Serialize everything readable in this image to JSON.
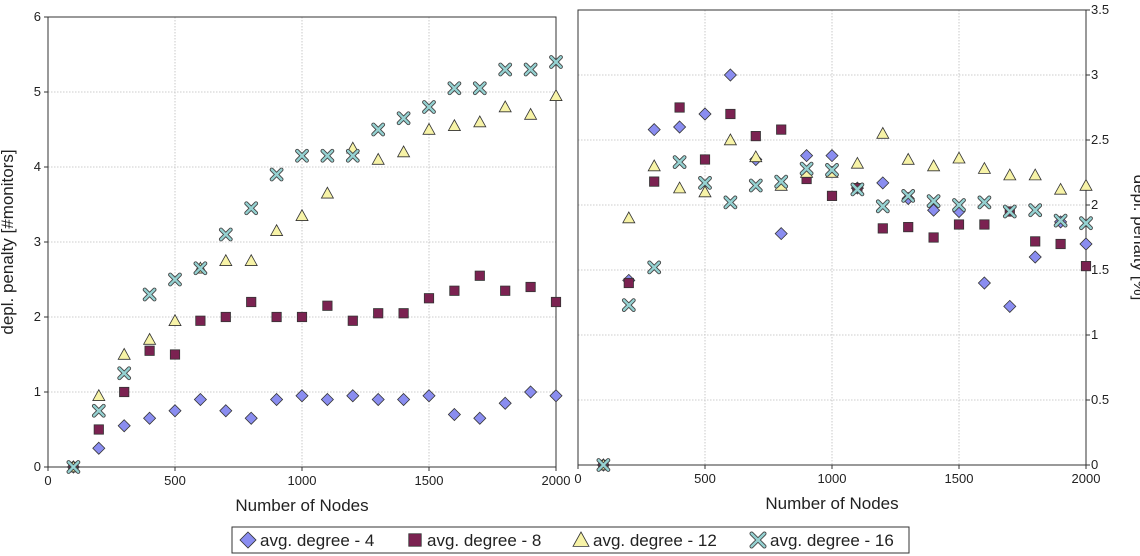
{
  "legend": [
    {
      "label": "avg. degree - 4",
      "marker": "diamond",
      "color": "#8a8df0"
    },
    {
      "label": "avg. degree - 8",
      "marker": "square",
      "color": "#7b2251"
    },
    {
      "label": "avg. degree - 12",
      "marker": "triangle",
      "color": "#f7f3a7"
    },
    {
      "label": "avg. degree - 16",
      "marker": "cross",
      "color": "#95d2d2"
    }
  ],
  "chart_data": [
    {
      "type": "scatter",
      "xlabel": "Number of Nodes",
      "ylabel": "depl. penalty [#monitors]",
      "xlim": [
        0,
        2000
      ],
      "ylim": [
        0,
        6
      ],
      "xticks": [
        "0",
        "500",
        "1000",
        "1500",
        "2000"
      ],
      "yticks": [
        "0",
        "1",
        "2",
        "3",
        "4",
        "5",
        "6"
      ],
      "grid": true,
      "y_axis_side": "left",
      "x": [
        100,
        200,
        300,
        400,
        500,
        600,
        700,
        800,
        900,
        1000,
        1100,
        1200,
        1300,
        1400,
        1500,
        1600,
        1700,
        1800,
        1900,
        2000
      ],
      "series": [
        {
          "name": "avg. degree - 4",
          "values": [
            0,
            0.25,
            0.55,
            0.65,
            0.75,
            0.9,
            0.75,
            0.65,
            0.9,
            0.95,
            0.9,
            0.95,
            0.9,
            0.9,
            0.95,
            0.7,
            0.65,
            0.85,
            1.0,
            0.95
          ]
        },
        {
          "name": "avg. degree - 8",
          "values": [
            0,
            0.5,
            1.0,
            1.55,
            1.5,
            1.95,
            2.0,
            2.2,
            2.0,
            2.0,
            2.15,
            1.95,
            2.05,
            2.05,
            2.25,
            2.35,
            2.55,
            2.35,
            2.4,
            2.2
          ]
        },
        {
          "name": "avg. degree - 12",
          "values": [
            0,
            0.95,
            1.5,
            1.7,
            1.95,
            2.65,
            2.75,
            2.75,
            3.15,
            3.35,
            3.65,
            4.25,
            4.1,
            4.2,
            4.5,
            4.55,
            4.6,
            4.8,
            4.7,
            4.95
          ]
        },
        {
          "name": "avg. degree - 16",
          "values": [
            0,
            0.75,
            1.25,
            2.3,
            2.5,
            2.65,
            3.1,
            3.45,
            3.9,
            4.15,
            4.15,
            4.15,
            4.5,
            4.65,
            4.8,
            5.05,
            5.05,
            5.3,
            5.3,
            5.4
          ]
        }
      ]
    },
    {
      "type": "scatter",
      "xlabel": "Number of Nodes",
      "ylabel": "depl. penalty [%]",
      "xlim": [
        0,
        2000
      ],
      "ylim": [
        0,
        3.5
      ],
      "xticks": [
        "0",
        "500",
        "1000",
        "1500",
        "2000"
      ],
      "yticks": [
        "0",
        "0.5",
        "1",
        "1.5",
        "2",
        "2.5",
        "3",
        "3.5"
      ],
      "grid": true,
      "y_axis_side": "right",
      "x": [
        100,
        200,
        300,
        400,
        500,
        600,
        700,
        800,
        900,
        1000,
        1100,
        1200,
        1300,
        1400,
        1500,
        1600,
        1700,
        1800,
        1900,
        2000
      ],
      "series": [
        {
          "name": "avg. degree - 4",
          "values": [
            0,
            1.42,
            2.58,
            2.6,
            2.7,
            3.0,
            2.35,
            1.78,
            2.38,
            2.38,
            2.13,
            2.17,
            2.05,
            1.96,
            1.95,
            1.4,
            1.22,
            1.6,
            1.87,
            1.7
          ]
        },
        {
          "name": "avg. degree - 8",
          "values": [
            0,
            1.4,
            2.18,
            2.75,
            2.35,
            2.7,
            2.53,
            2.58,
            2.2,
            2.07,
            2.13,
            1.82,
            1.83,
            1.75,
            1.85,
            1.85,
            1.95,
            1.72,
            1.7,
            1.53
          ]
        },
        {
          "name": "avg. degree - 12",
          "values": [
            0,
            1.9,
            2.3,
            2.13,
            2.1,
            2.5,
            2.37,
            2.15,
            2.25,
            2.25,
            2.32,
            2.55,
            2.35,
            2.3,
            2.36,
            2.28,
            2.23,
            2.23,
            2.12,
            2.15
          ]
        },
        {
          "name": "avg. degree - 16",
          "values": [
            0,
            1.23,
            1.52,
            2.33,
            2.17,
            2.02,
            2.15,
            2.18,
            2.28,
            2.27,
            2.12,
            1.99,
            2.07,
            2.03,
            2.0,
            2.02,
            1.95,
            1.96,
            1.88,
            1.86
          ]
        }
      ]
    }
  ]
}
